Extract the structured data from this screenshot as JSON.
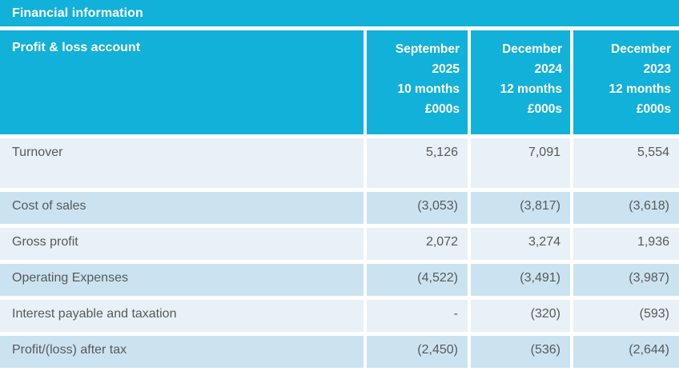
{
  "panel": {
    "title": "Financial information"
  },
  "colors": {
    "accent": "#12B1DA",
    "row_light": "#E7F1F7",
    "row_dark": "#CBE3F0",
    "header_text": "#FFFFFF",
    "body_text": "#595959"
  },
  "table": {
    "header": {
      "label": "Profit & loss account",
      "columns": [
        {
          "lines": [
            "September",
            "2025",
            "10 months",
            "£000s"
          ]
        },
        {
          "lines": [
            "December",
            "2024",
            "12 months",
            "£000s"
          ]
        },
        {
          "lines": [
            "December",
            "2023",
            "12 months",
            "£000s"
          ]
        }
      ]
    },
    "rows": [
      {
        "label": "Turnover",
        "values": [
          "5,126",
          "7,091",
          "5,554"
        ]
      },
      {
        "label": "Cost of sales",
        "values": [
          "(3,053)",
          "(3,817)",
          "(3,618)"
        ]
      },
      {
        "label": "Gross profit",
        "values": [
          "2,072",
          "3,274",
          "1,936"
        ]
      },
      {
        "label": "Operating Expenses",
        "values": [
          "(4,522)",
          "(3,491)",
          "(3,987)"
        ]
      },
      {
        "label": "Interest payable and taxation",
        "values": [
          "-",
          "(320)",
          "(593)"
        ]
      },
      {
        "label": "Profit/(loss) after tax",
        "values": [
          "(2,450)",
          "(536)",
          "(2,644)"
        ]
      }
    ]
  }
}
